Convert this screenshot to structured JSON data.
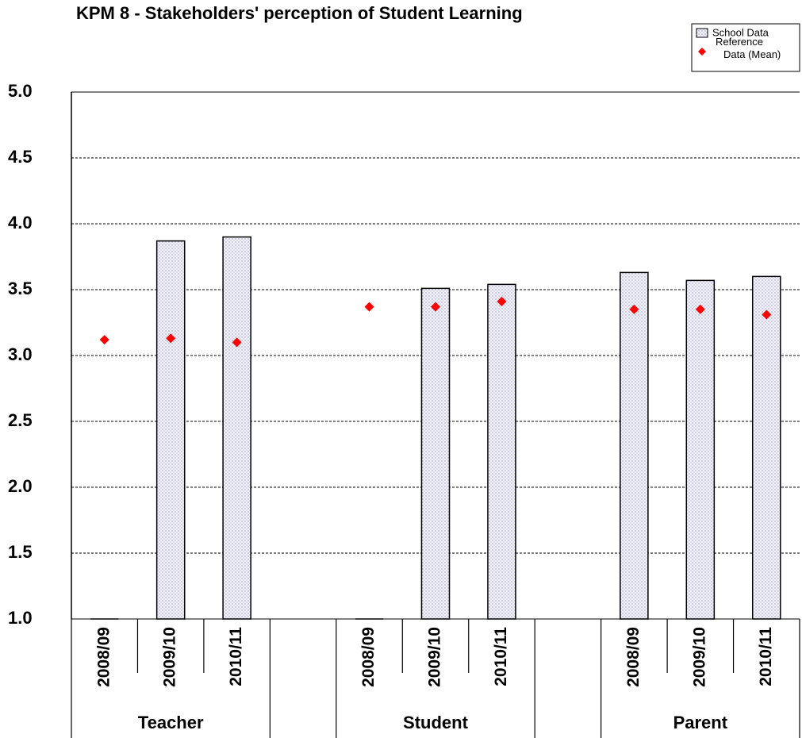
{
  "chart_data": {
    "type": "bar",
    "title": "KPM 8 - Stakeholders' perception of Student Learning",
    "categories": [
      "2008/09",
      "2009/10",
      "2010/11",
      null,
      "2008/09",
      "2009/10",
      "2010/11",
      null,
      "2008/09",
      "2009/10",
      "2010/11"
    ],
    "groups": [
      "Teacher",
      "Student",
      "Parent"
    ],
    "series": [
      {
        "name": "School Data",
        "color": "#e8e8f4",
        "values": [
          1.0,
          3.87,
          3.9,
          null,
          1.0,
          3.51,
          3.54,
          null,
          3.63,
          3.57,
          3.6
        ]
      },
      {
        "name": "Reference Data (Mean)",
        "color": "#ff0000",
        "marker": "diamond",
        "values": [
          3.12,
          3.13,
          3.1,
          null,
          3.37,
          3.37,
          3.41,
          null,
          3.35,
          3.35,
          3.31
        ]
      }
    ],
    "ylim": [
      1,
      5
    ],
    "yticks": [
      {
        "value": 1,
        "label": "1.0"
      },
      {
        "value": 1.5,
        "label": "1.5"
      },
      {
        "value": 2,
        "label": "2.0"
      },
      {
        "value": 2.5,
        "label": "2.5"
      },
      {
        "value": 3,
        "label": "3.0"
      },
      {
        "value": 3.5,
        "label": "3.5"
      },
      {
        "value": 4,
        "label": "4.0"
      },
      {
        "value": 4.5,
        "label": "4.5"
      },
      {
        "value": 5,
        "label": "5.0"
      }
    ],
    "grid": true,
    "legend": "top-right"
  }
}
